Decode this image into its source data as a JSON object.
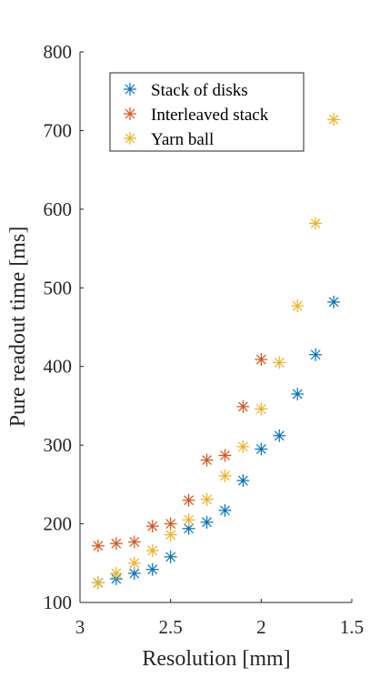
{
  "chart_data": {
    "type": "scatter",
    "title": "",
    "xlabel": "Resolution [mm]",
    "ylabel": "Pure readout time [ms]",
    "x_reversed": true,
    "xlim": [
      1.5,
      3.0
    ],
    "ylim": [
      100,
      800
    ],
    "xticks": [
      3,
      2.5,
      2,
      1.5
    ],
    "xtick_labels": [
      "3",
      "2.5",
      "2",
      "1.5"
    ],
    "yticks": [
      100,
      200,
      300,
      400,
      500,
      600,
      700,
      800
    ],
    "ytick_labels": [
      "100",
      "200",
      "300",
      "400",
      "500",
      "600",
      "700",
      "800"
    ],
    "marker": "asterisk",
    "grid": false,
    "legend_position": "top-right",
    "series": [
      {
        "name": "Stack of disks",
        "color": "#0072BD",
        "x": [
          2.9,
          2.8,
          2.7,
          2.6,
          2.5,
          2.4,
          2.3,
          2.2,
          2.1,
          2.0,
          1.9,
          1.8,
          1.7,
          1.6
        ],
        "y": [
          125,
          130,
          137,
          142,
          158,
          194,
          202,
          217,
          255,
          295,
          312,
          365,
          415,
          482
        ]
      },
      {
        "name": "Interleaved stack",
        "color": "#D95319",
        "x": [
          2.9,
          2.8,
          2.7,
          2.6,
          2.5,
          2.4,
          2.3,
          2.2,
          2.1,
          2.0
        ],
        "y": [
          172,
          175,
          177,
          197,
          200,
          230,
          281,
          287,
          349,
          409
        ]
      },
      {
        "name": "Yarn ball",
        "color": "#EDB120",
        "x": [
          2.9,
          2.8,
          2.7,
          2.6,
          2.5,
          2.4,
          2.3,
          2.2,
          2.1,
          2.0,
          1.9,
          1.8,
          1.7,
          1.6
        ],
        "y": [
          125,
          137,
          150,
          166,
          186,
          205,
          231,
          261,
          298,
          346,
          405,
          477,
          582,
          714
        ]
      }
    ]
  }
}
